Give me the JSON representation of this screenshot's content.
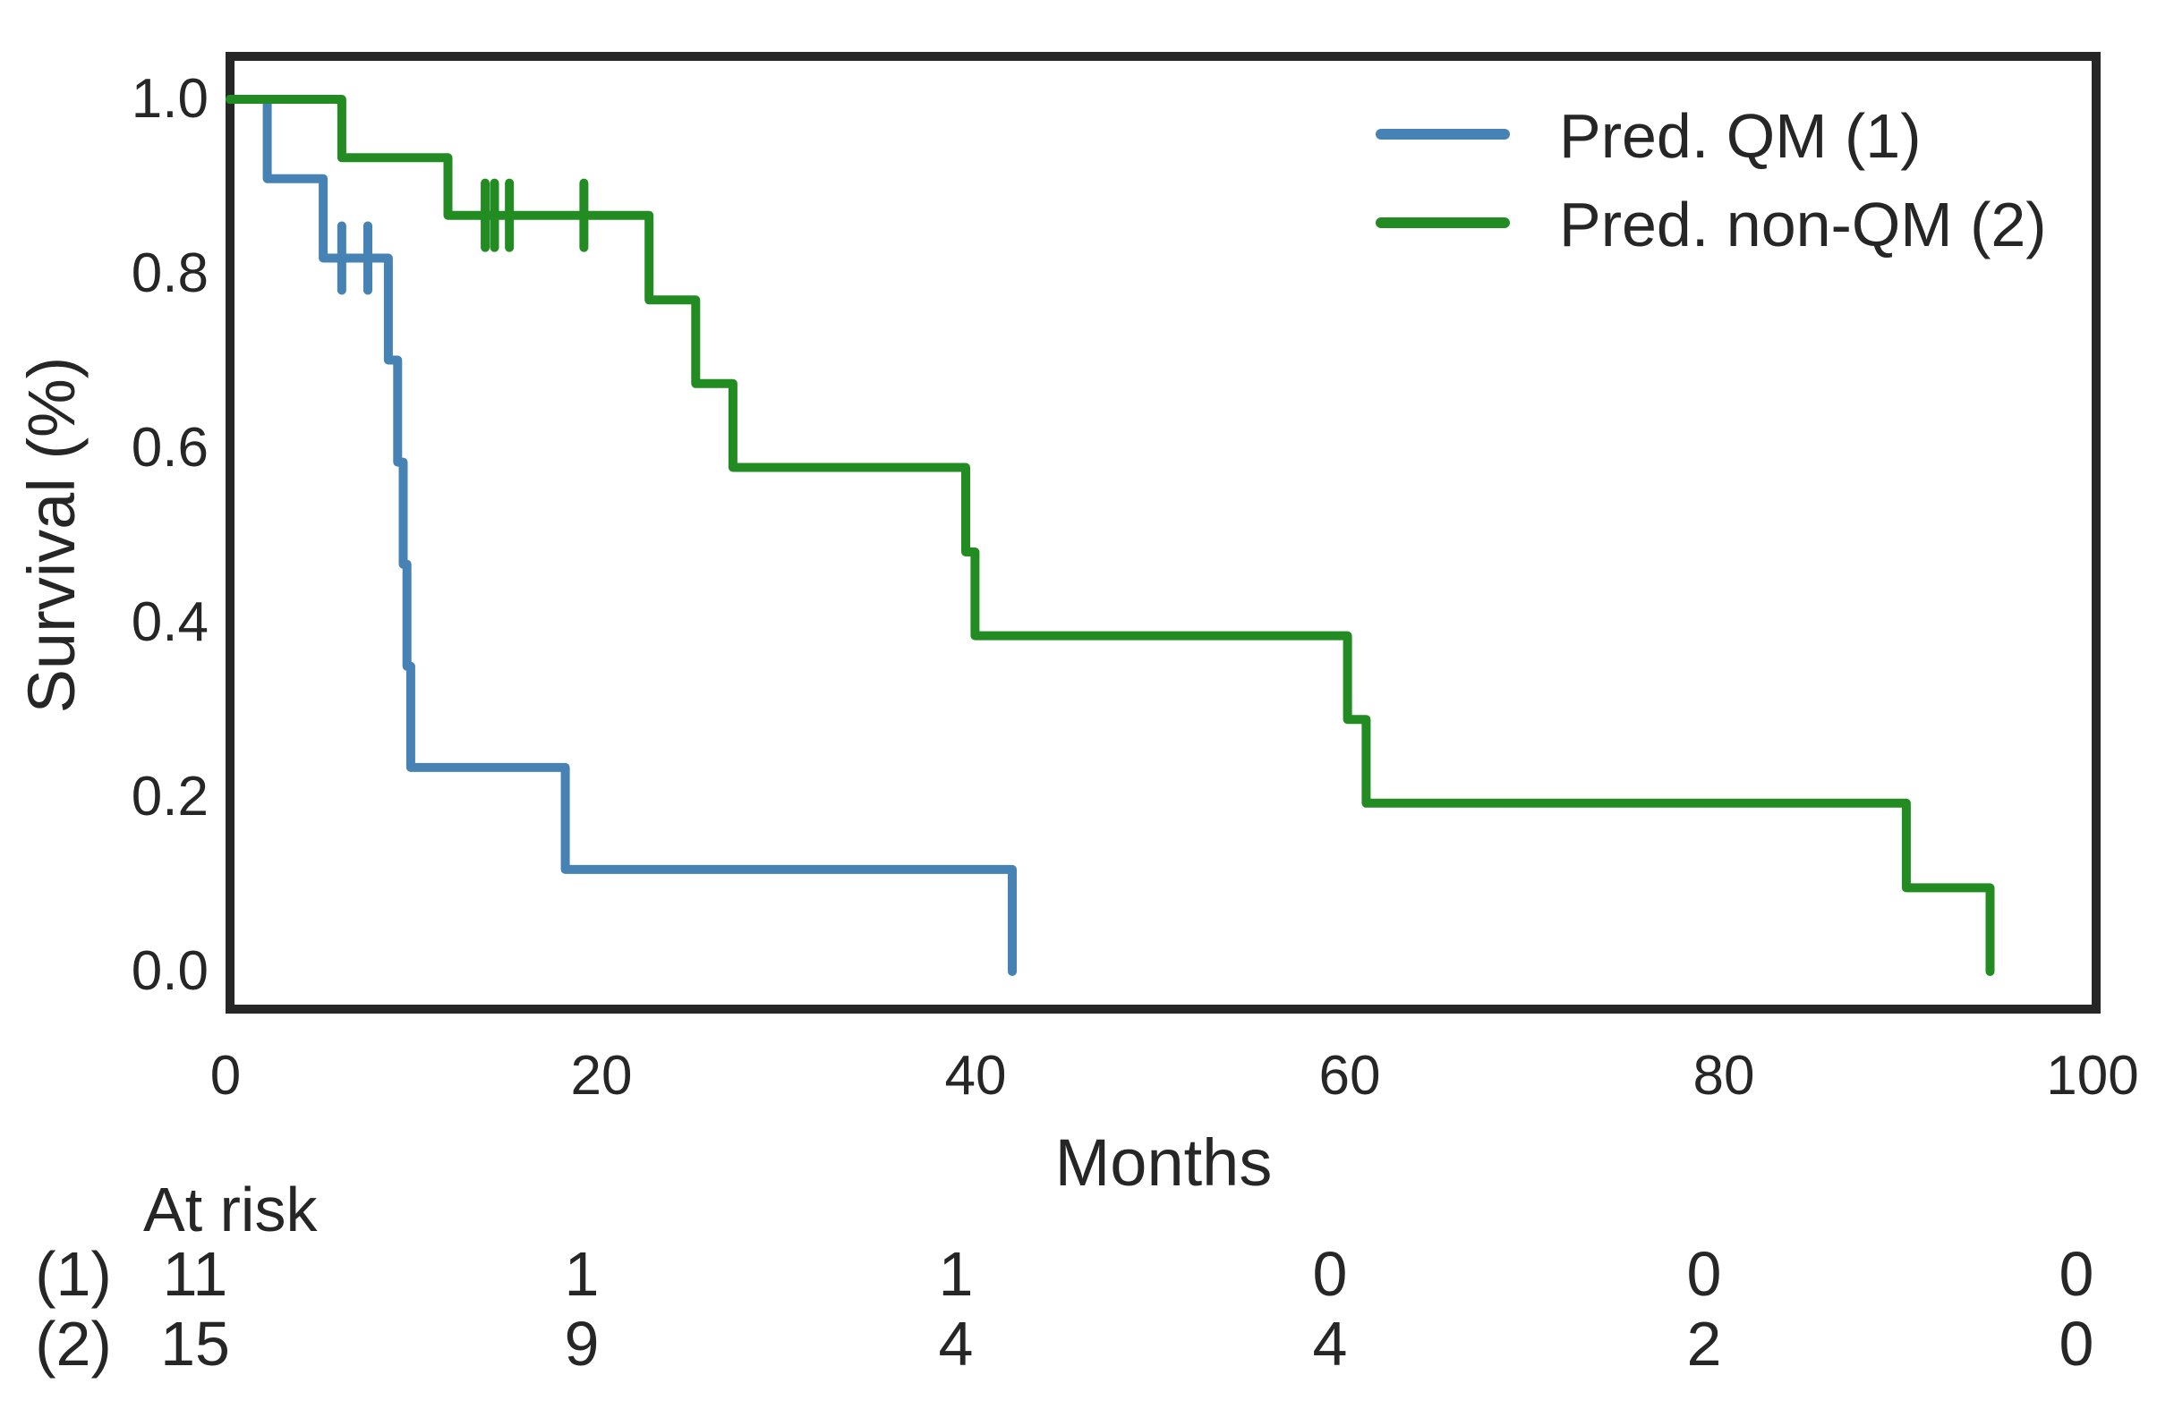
{
  "chart_data": {
    "type": "line",
    "subtype": "kaplan-meier-step-curves",
    "title": "",
    "xlabel": "Months",
    "ylabel": "Survival (%)",
    "xlim": [
      0,
      100
    ],
    "ylim": [
      0.0,
      1.0
    ],
    "x_ticks": [
      "0",
      "20",
      "40",
      "60",
      "80",
      "100"
    ],
    "y_ticks": [
      "1.0",
      "0.8",
      "0.6",
      "0.4",
      "0.2",
      "0.0"
    ],
    "grid": false,
    "legend_position": "upper right",
    "series": [
      {
        "name": "Pred. QM (1)",
        "color": "#4682B4",
        "steps": [
          [
            0,
            1.0
          ],
          [
            2,
            1.0
          ],
          [
            2,
            0.909
          ],
          [
            5,
            0.909
          ],
          [
            5,
            0.818
          ],
          [
            8.5,
            0.818
          ],
          [
            8.5,
            0.701
          ],
          [
            9,
            0.701
          ],
          [
            9,
            0.584
          ],
          [
            9.3,
            0.584
          ],
          [
            9.3,
            0.467
          ],
          [
            9.5,
            0.467
          ],
          [
            9.5,
            0.35
          ],
          [
            9.7,
            0.35
          ],
          [
            9.7,
            0.234
          ],
          [
            18,
            0.234
          ],
          [
            18,
            0.117
          ],
          [
            42,
            0.117
          ],
          [
            42,
            0.0
          ]
        ],
        "censor_marks": [
          [
            6,
            0.818
          ],
          [
            7.4,
            0.818
          ]
        ]
      },
      {
        "name": "Pred. non-QM (2)",
        "color": "#228B22",
        "steps": [
          [
            0,
            1.0
          ],
          [
            6,
            1.0
          ],
          [
            6,
            0.933
          ],
          [
            11.7,
            0.933
          ],
          [
            11.7,
            0.867
          ],
          [
            22.5,
            0.867
          ],
          [
            22.5,
            0.77
          ],
          [
            25,
            0.77
          ],
          [
            25,
            0.674
          ],
          [
            27,
            0.674
          ],
          [
            27,
            0.578
          ],
          [
            39.5,
            0.578
          ],
          [
            39.5,
            0.481
          ],
          [
            40,
            0.481
          ],
          [
            40,
            0.385
          ],
          [
            60,
            0.385
          ],
          [
            60,
            0.289
          ],
          [
            61,
            0.289
          ],
          [
            61,
            0.193
          ],
          [
            90,
            0.193
          ],
          [
            90,
            0.096
          ],
          [
            94.5,
            0.096
          ],
          [
            94.5,
            0.0
          ]
        ],
        "censor_marks": [
          [
            13.7,
            0.867
          ],
          [
            14.2,
            0.867
          ],
          [
            15,
            0.867
          ],
          [
            19,
            0.867
          ]
        ]
      }
    ]
  },
  "axes": {
    "x": {
      "label": "Months",
      "ticks": [
        "0",
        "20",
        "40",
        "60",
        "80",
        "100"
      ]
    },
    "y": {
      "label": "Survival (%)",
      "ticks": [
        "1.0",
        "0.8",
        "0.6",
        "0.4",
        "0.2",
        "0.0"
      ]
    }
  },
  "legend": {
    "items": [
      {
        "label": "Pred. QM (1)",
        "color": "#4682B4"
      },
      {
        "label": "Pred. non-QM (2)",
        "color": "#228B22"
      }
    ]
  },
  "at_risk": {
    "header": "At risk",
    "times": [
      "0",
      "20",
      "40",
      "60",
      "80",
      "100"
    ],
    "rows": [
      {
        "label": "(1)",
        "counts": [
          "11",
          "1",
          "1",
          "0",
          "0",
          "0"
        ]
      },
      {
        "label": "(2)",
        "counts": [
          "15",
          "9",
          "4",
          "4",
          "2",
          "0"
        ]
      }
    ]
  },
  "colors": {
    "axis": "#262626",
    "text": "#262626",
    "series_qm": "#4682B4",
    "series_non_qm": "#228B22"
  }
}
